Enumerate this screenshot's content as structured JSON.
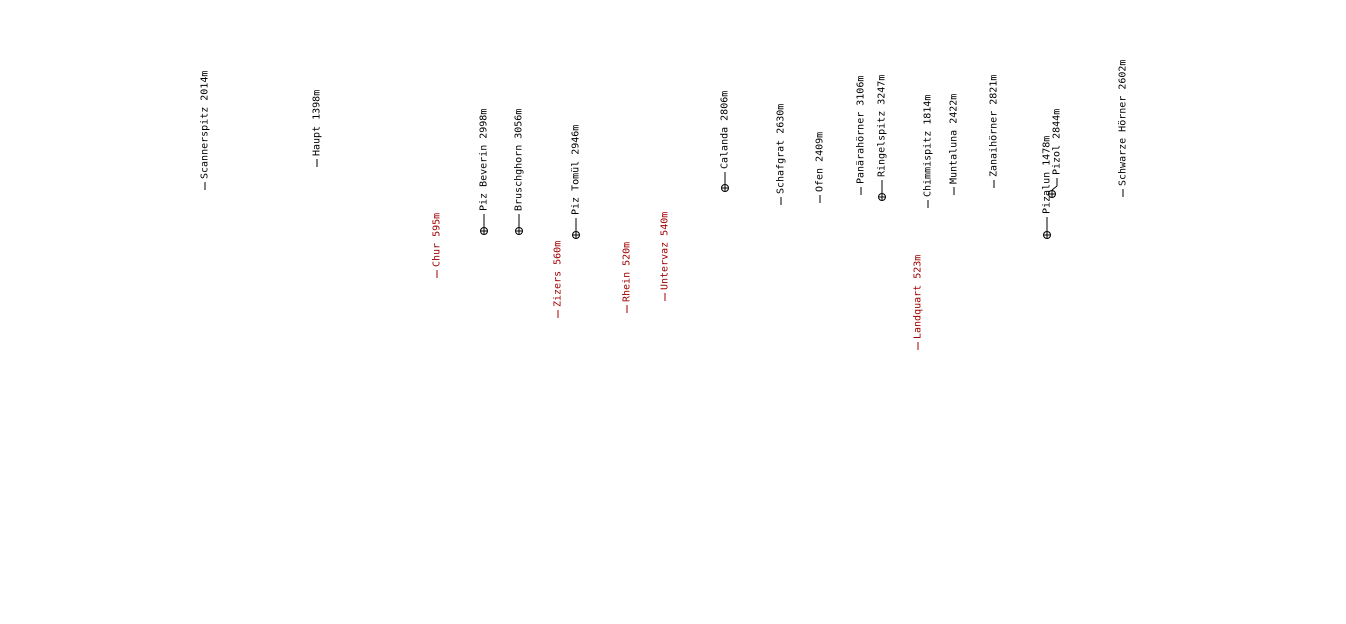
{
  "peaks": [
    {
      "label": "Scannerspitz 2014m"
    },
    {
      "label": "Haupt 1398m"
    },
    {
      "label": "Piz Beverin 2998m"
    },
    {
      "label": "Bruschghorn 3056m"
    },
    {
      "label": "Piz Tomül 2946m"
    },
    {
      "label": "Calanda 2806m"
    },
    {
      "label": "Schafgrat 2630m"
    },
    {
      "label": "Ofen 2409m"
    },
    {
      "label": "Panärahörner 3106m"
    },
    {
      "label": "Ringelspitz 3247m"
    },
    {
      "label": "Chimmispitz 1814m"
    },
    {
      "label": "Muntaluna 2422m"
    },
    {
      "label": "Zanaihörner 2821m"
    },
    {
      "label": "Pizalun 1478m"
    },
    {
      "label": "Pizol 2844m"
    },
    {
      "label": "Schwarze Hörner 2602m"
    }
  ],
  "places": [
    {
      "label": "Chur 595m"
    },
    {
      "label": "Zizers 560m"
    },
    {
      "label": "Rhein 520m"
    },
    {
      "label": "Untervaz 540m"
    },
    {
      "label": "Landquart 523m"
    }
  ]
}
